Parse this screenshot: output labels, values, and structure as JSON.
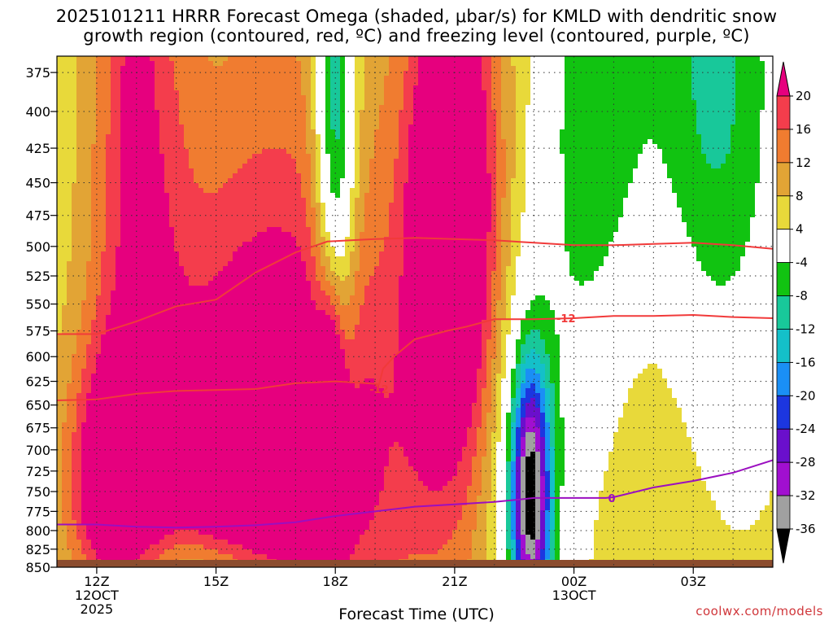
{
  "title": "2025101211 HRRR Forecast Omega (shaded, μbar/s) for KMLD with dendritic snow\ngrowth region (contoured, red, ºC) and freezing level (contoured, purple, ºC)",
  "credit": "coolwx.com/models",
  "chart_data": {
    "type": "heatmap",
    "title": "2025101211 HRRR Forecast Omega (shaded, μbar/s) for KMLD with dendritic snow growth region (contoured, red, ºC) and freezing level (contoured, purple, ºC)",
    "xlabel": "Forecast Time (UTC)",
    "ylabel": "",
    "xlim_hours": [
      11,
      29
    ],
    "ylim_hpa": [
      850,
      365
    ],
    "y_log_scale": true,
    "grid": true,
    "x_ticks": [
      {
        "hour": 12,
        "lines": [
          "12Z",
          "12OCT",
          "2025"
        ]
      },
      {
        "hour": 15,
        "lines": [
          "15Z"
        ]
      },
      {
        "hour": 18,
        "lines": [
          "18Z"
        ]
      },
      {
        "hour": 21,
        "lines": [
          "21Z"
        ]
      },
      {
        "hour": 24,
        "lines": [
          "00Z",
          "13OCT"
        ]
      },
      {
        "hour": 27,
        "lines": [
          "03Z"
        ]
      }
    ],
    "y_ticks": [
      375,
      400,
      425,
      450,
      475,
      500,
      525,
      550,
      575,
      600,
      625,
      650,
      675,
      700,
      725,
      750,
      775,
      800,
      825,
      850
    ],
    "colorbar": {
      "labels": [
        "20",
        "16",
        "12",
        "8",
        "4",
        "-4",
        "-8",
        "-12",
        "-16",
        "-20",
        "-24",
        "-28",
        "-32",
        "-36"
      ],
      "bins": [
        {
          "lo": 20,
          "hi": 24,
          "color": "#e6007e"
        },
        {
          "lo": 16,
          "hi": 20,
          "color": "#f43d4c"
        },
        {
          "lo": 12,
          "hi": 16,
          "color": "#f07c30"
        },
        {
          "lo": 8,
          "hi": 12,
          "color": "#e2a435"
        },
        {
          "lo": 4,
          "hi": 8,
          "color": "#e8d93a"
        },
        {
          "lo": -4,
          "hi": 4,
          "color": "#ffffff"
        },
        {
          "lo": -8,
          "hi": -4,
          "color": "#11c311"
        },
        {
          "lo": -12,
          "hi": -8,
          "color": "#18c89a"
        },
        {
          "lo": -16,
          "hi": -12,
          "color": "#14c0c9"
        },
        {
          "lo": -20,
          "hi": -16,
          "color": "#1a8ff5"
        },
        {
          "lo": -24,
          "hi": -20,
          "color": "#1c36e0"
        },
        {
          "lo": -28,
          "hi": -24,
          "color": "#6a0fcc"
        },
        {
          "lo": -32,
          "hi": -28,
          "color": "#a10fd0"
        },
        {
          "lo": -36,
          "hi": -32,
          "color": "#a0a0a0"
        },
        {
          "lo": -40,
          "hi": -36,
          "color": "#000000"
        }
      ]
    },
    "omega_features": [
      {
        "name": "early warm mid",
        "t": 13.0,
        "p": 430,
        "w": 1.2,
        "h": 0.55,
        "value": 14
      },
      {
        "name": "early thin core",
        "t": 13.0,
        "p": 400,
        "w": 0.25,
        "h": 0.12,
        "value": 18
      },
      {
        "name": "mid rising band",
        "t": 16.5,
        "p": 570,
        "w": 3.0,
        "h": 0.7,
        "value": 12
      },
      {
        "name": "lower left cell",
        "t": 12.4,
        "p": 740,
        "w": 1.1,
        "h": 0.22,
        "value": 19
      },
      {
        "name": "lower broad cell",
        "t": 16.5,
        "p": 730,
        "w": 3.6,
        "h": 0.35,
        "value": 16
      },
      {
        "name": "18Z core",
        "t": 17.9,
        "p": 690,
        "w": 0.35,
        "h": 0.25,
        "value": 22
      },
      {
        "name": "21Z column",
        "t": 20.9,
        "p": 480,
        "w": 1.0,
        "h": 0.35,
        "value": 22
      },
      {
        "name": "early evening upper",
        "t": 21.0,
        "p": 420,
        "w": 1.5,
        "h": 0.8,
        "value": 10
      },
      {
        "name": "post-00Z mid",
        "t": 26.0,
        "p": 640,
        "w": 3.0,
        "h": 0.5,
        "value": 8
      },
      {
        "name": "18Z sinking column",
        "t": 18.0,
        "p": 420,
        "w": 0.5,
        "h": 0.45,
        "value": -22
      },
      {
        "name": "23Z low sinking core",
        "t": 22.9,
        "p": 755,
        "w": 0.5,
        "h": 0.22,
        "value": -38
      },
      {
        "name": "23Z low sinking halo",
        "t": 22.9,
        "p": 740,
        "w": 1.2,
        "h": 0.4,
        "value": -10
      },
      {
        "name": "late upper sinking",
        "t": 24.5,
        "p": 430,
        "w": 1.4,
        "h": 0.55,
        "value": -14
      },
      {
        "name": "late upper sinking east",
        "t": 27.5,
        "p": 420,
        "w": 1.8,
        "h": 0.6,
        "value": -16
      },
      {
        "name": "surface sinking strip",
        "t": 15.0,
        "p": 848,
        "w": 2.5,
        "h": 0.05,
        "value": -10
      },
      {
        "name": "12Z small sinking spot",
        "t": 12.9,
        "p": 618,
        "w": 0.25,
        "h": 0.06,
        "value": -6
      }
    ],
    "contours": [
      {
        "name": "dendritic -12C top",
        "color": "#f13a3a",
        "label": "-12",
        "label_at": {
          "t": 23.8,
          "p": 563
        },
        "points": [
          [
            11.0,
            578
          ],
          [
            12.0,
            578
          ],
          [
            13.0,
            566
          ],
          [
            14.0,
            552
          ],
          [
            15.0,
            546
          ],
          [
            16.0,
            522
          ],
          [
            17.0,
            505
          ],
          [
            17.8,
            496
          ],
          [
            19.0,
            494
          ],
          [
            20.0,
            493
          ],
          [
            21.0,
            494
          ],
          [
            22.0,
            495
          ],
          [
            23.0,
            497
          ],
          [
            24.0,
            499
          ],
          [
            25.0,
            499
          ],
          [
            26.0,
            498
          ],
          [
            27.0,
            497
          ],
          [
            28.0,
            499
          ],
          [
            29.0,
            502
          ]
        ]
      },
      {
        "name": "dendritic -12C lower",
        "color": "#f13a3a",
        "label": "-12",
        "label_at": {
          "t": 19.1,
          "p": 633
        },
        "points": [
          [
            11.0,
            645
          ],
          [
            12.0,
            644
          ],
          [
            13.0,
            638
          ],
          [
            14.0,
            635
          ],
          [
            15.0,
            634
          ],
          [
            16.0,
            633
          ],
          [
            17.0,
            627
          ],
          [
            18.0,
            625
          ],
          [
            18.8,
            627
          ],
          [
            19.1,
            628
          ],
          [
            19.2,
            612
          ],
          [
            19.5,
            599
          ],
          [
            20.0,
            583
          ],
          [
            20.8,
            575
          ],
          [
            21.3,
            571
          ],
          [
            22.0,
            564
          ],
          [
            23.0,
            564
          ],
          [
            24.0,
            563
          ],
          [
            25.0,
            561
          ],
          [
            26.0,
            561
          ],
          [
            27.0,
            560
          ],
          [
            28.0,
            562
          ],
          [
            29.0,
            563
          ]
        ]
      },
      {
        "name": "freezing level 0C",
        "color": "#9b0fc0",
        "label": "0",
        "label_at": {
          "t": 24.95,
          "p": 758
        },
        "points": [
          [
            11.0,
            792
          ],
          [
            12.0,
            792
          ],
          [
            13.0,
            795
          ],
          [
            14.0,
            796
          ],
          [
            15.0,
            795
          ],
          [
            16.0,
            793
          ],
          [
            17.0,
            789
          ],
          [
            18.0,
            781
          ],
          [
            19.0,
            775
          ],
          [
            20.0,
            769
          ],
          [
            21.0,
            766
          ],
          [
            22.0,
            763
          ],
          [
            23.0,
            758
          ],
          [
            24.0,
            758
          ],
          [
            24.8,
            758
          ],
          [
            25.0,
            757
          ],
          [
            26.0,
            745
          ],
          [
            27.0,
            737
          ],
          [
            28.0,
            727
          ],
          [
            29.0,
            712
          ]
        ]
      }
    ]
  }
}
